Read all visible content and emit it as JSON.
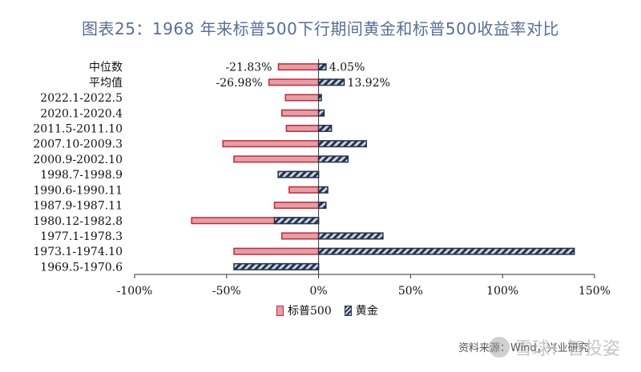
{
  "chart_data": {
    "type": "bar",
    "orientation": "horizontal",
    "title": "图表25：1968 年来标普500下行期间黄金和标普500收益率对比",
    "categories": [
      "中位数",
      "平均值",
      "2022.1-2022.5",
      "2020.1-2020.4",
      "2011.5-2011.10",
      "2007.10-2009.3",
      "2000.9-2002.10",
      "1998.7-1998.9",
      "1990.6-1990.11",
      "1987.9-1987.11",
      "1980.12-1982.8",
      "1977.1-1978.3",
      "1973.1-1974.10",
      "1969.5-1970.6"
    ],
    "series": [
      {
        "name": "标普500",
        "color": "#c4283a",
        "fill": "#e29fa6",
        "pattern": "solid",
        "values": [
          -21.83,
          -26.98,
          -18,
          -20,
          -17.5,
          -52,
          -46,
          -16,
          -16,
          -24,
          -69,
          -20,
          -46,
          -26
        ],
        "data_labels": [
          "-21.83%",
          "-26.98%",
          "",
          "",
          "",
          "",
          "",
          "",
          "",
          "",
          "",
          "",
          "",
          ""
        ]
      },
      {
        "name": "黄金",
        "color": "#24334d",
        "fill": "#c9d2dd",
        "pattern": "striped",
        "values": [
          4.05,
          13.92,
          1.5,
          3,
          7,
          26,
          16,
          -22,
          5,
          4,
          -24,
          35,
          139,
          -46
        ],
        "data_labels": [
          "4.05%",
          "13.92%",
          "",
          "",
          "",
          "",
          "",
          "",
          "",
          "",
          "",
          "",
          "",
          ""
        ]
      }
    ],
    "xlim": [
      -100,
      150
    ],
    "x_ticks": [
      -100,
      -50,
      0,
      50,
      100,
      150
    ],
    "x_tick_labels": [
      "-100%",
      "-50%",
      "0%",
      "50%",
      "100%",
      "150%"
    ],
    "legend_position": "bottom-center",
    "grid": false
  },
  "source": "资料来源：Wind，兴业研究",
  "watermark": "雪球：智投姿"
}
